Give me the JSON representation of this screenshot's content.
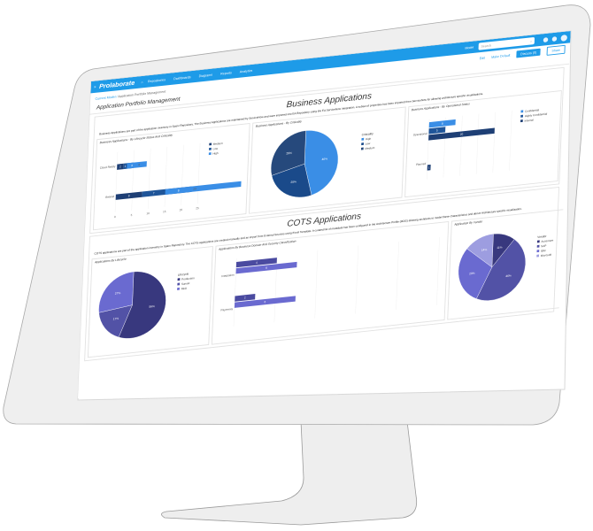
{
  "nav": {
    "logo": "Prolaborate",
    "menus": [
      "Repositories",
      "Dashboards",
      "Diagrams",
      "Reports",
      "Analytics"
    ],
    "model_label": "Model",
    "search_placeholder": "Search"
  },
  "toolbar": {
    "breadcrumb_home": "Current Model",
    "breadcrumb_current": "Application Portfolio Management",
    "edit": "Edit",
    "make_default": "Make Default",
    "discuss": "Discuss (0)",
    "share": "Share"
  },
  "page_title": "Application Portfolio Management",
  "business": {
    "title": "Business Applications",
    "description": "Business Applications are part of the application inventory in Sparx Repository. The Business Applications are maintained by ServiceNow and were imported into EA Repository using the EA ServiceNow Integration. A subset of properties has been imported from ServiceNow for allowing architecture specific visualizations."
  },
  "cots": {
    "title": "COTS Applications",
    "description": "COTS applications are part of the application inventory in Sparx Repository. The COTS applications are created manually and an import from External Sources using Excel Template. A curated list of metadata has been configured in the Architecture Profile (MDG) allowing architects to model these characteristics and derive Architecture specific visualization."
  },
  "colors": {
    "nav": "#1e9be8",
    "biz_light": "#3a8ee6",
    "biz_mid": "#1f5599",
    "biz_dark": "#1e3f75",
    "cots_dark": "#38387e",
    "cots_mid": "#5252a6",
    "cots_light": "#6a6ad0",
    "cots_pale": "#9d9de0"
  },
  "chart_data": [
    {
      "type": "bar",
      "orientation": "horizontal",
      "stacked": true,
      "title": "Business Applications - By Lifecycle Status And Criticality",
      "categories": [
        "Cloud Ready",
        "Retired"
      ],
      "series": [
        {
          "name": "Medium",
          "values": [
            2,
            8
          ],
          "color": "#1e3f75"
        },
        {
          "name": "Low",
          "values": [
            1,
            7
          ],
          "color": "#1f5599"
        },
        {
          "name": "High",
          "values": [
            3,
            8
          ],
          "color": "#3a8ee6"
        }
      ],
      "xticks": [
        0,
        5,
        10,
        15,
        20,
        25
      ],
      "xlim": [
        0,
        25
      ],
      "legend": "right"
    },
    {
      "type": "pie",
      "title": "Business Applications - By Criticality",
      "legend_title": "Criticality",
      "labels": [
        "High",
        "Low",
        "Medium"
      ],
      "values": [
        46,
        25,
        29
      ],
      "colors": [
        "#3a8ee6",
        "#1a4a8a",
        "#26497c"
      ],
      "legend": "right"
    },
    {
      "type": "bar",
      "orientation": "horizontal",
      "stacked": false,
      "title": "Business Applications - By Operational Status",
      "categories": [
        "Operational",
        "Planned"
      ],
      "series": [
        {
          "name": "Confidential",
          "values": [
            8,
            0
          ],
          "color": "#3a8ee6"
        },
        {
          "name": "Highly Confidential",
          "values": [
            5,
            0
          ],
          "color": "#1f5599"
        },
        {
          "name": "Internal",
          "values": [
            20,
            1
          ],
          "color": "#1e3f75"
        }
      ],
      "xlim": [
        0,
        25
      ],
      "legend": "right"
    },
    {
      "type": "pie",
      "title": "Applications By Lifecycle",
      "legend_title": "Lifecycle",
      "labels": [
        "Production",
        "Sunset",
        "R&D"
      ],
      "values": [
        56,
        17,
        27
      ],
      "colors": [
        "#38387e",
        "#5252a6",
        "#6a6ad0"
      ],
      "legend": "right"
    },
    {
      "type": "bar",
      "orientation": "horizontal",
      "stacked": false,
      "title": "Applications By Business Domain And Security Classification",
      "categories": [
        "Integration",
        "Payments"
      ],
      "series": [
        {
          "name": "Confidential",
          "values": [
            4,
            2
          ],
          "color": "#4a4aa0"
        },
        {
          "name": "Internal",
          "values": [
            6,
            6
          ],
          "color": "#6a6ad0"
        }
      ],
      "xlim": [
        0,
        20
      ],
      "legend": "none"
    },
    {
      "type": "pie",
      "title": "Application By Vendor",
      "legend_title": "Vendor",
      "labels": [
        "Accenture",
        "SAP",
        "IBM",
        "Microsoft"
      ],
      "values": [
        11,
        46,
        29,
        14
      ],
      "colors": [
        "#38387e",
        "#5252a6",
        "#6a6ad0",
        "#9d9de0"
      ],
      "legend": "right"
    }
  ]
}
